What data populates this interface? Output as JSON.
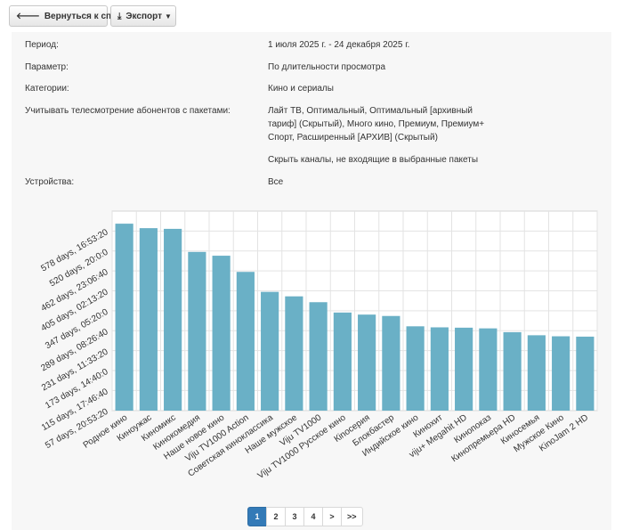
{
  "toolbar": {
    "back_label": "Вернуться к списку",
    "export_label": "Экспорт"
  },
  "report": {
    "period_label": "Период:",
    "period_value": "1 июля 2025 г. - 24 декабря 2025 г.",
    "parameter_label": "Параметр:",
    "parameter_value": "По длительности просмотра",
    "categories_label": "Категории:",
    "categories_value": "Кино и сериалы",
    "packages_label": "Учитывать телесмотрение абонентов с пакетами:",
    "packages_value_line1": "Лайт ТВ, Оптимальный, Оптимальный [архивный",
    "packages_value_line2": "тариф] (Скрытый), Много кино, Премиум, Премиум+",
    "packages_value_line3": "Спорт, Расширенный [АРХИВ] (Скрытый)",
    "hide_channels": "Скрыть каналы, не входящие в выбранные пакеты",
    "devices_label": "Устройства:",
    "devices_value": "Все"
  },
  "chart_data": {
    "type": "bar",
    "color": "#6ab0c6",
    "ylim_days": [
      57.1,
      636.5
    ],
    "y_ticks": [
      {
        "label": "57 days, 20:53:20",
        "days": 57.87
      },
      {
        "label": "115 days, 17:46:40",
        "days": 115.74
      },
      {
        "label": "173 days, 14:40:0",
        "days": 173.61
      },
      {
        "label": "231 days, 11:33:20",
        "days": 231.48
      },
      {
        "label": "289 days, 08:26:40",
        "days": 289.35
      },
      {
        "label": "347 days, 05:20:0",
        "days": 347.22
      },
      {
        "label": "405 days, 02:13:20",
        "days": 405.09
      },
      {
        "label": "462 days, 23:06:40",
        "days": 462.96
      },
      {
        "label": "520 days, 20:0:0",
        "days": 520.83
      },
      {
        "label": "578 days, 16:53:20",
        "days": 578.7
      }
    ],
    "categories": [
      "Родное кино",
      "Киноужас",
      "Киномикс",
      "Кинокомедия",
      "Наше новое кино",
      "Viju TV1000 Action",
      "Советская кинокласcика",
      "Наше мужское",
      "Viju TV1000",
      "Viju TV1000 Русское кино",
      "Кinoсерия",
      "Блокбастер",
      "Индийское кино",
      "Кинохит",
      "viju+ Megahit HD",
      "Кинопоказ",
      "Кинопремьера HD",
      "Киносемья",
      "Мужское Кино",
      "KinoJam 2 HD"
    ],
    "values": [
      600,
      587,
      585,
      518,
      507,
      460,
      402,
      389,
      372,
      342,
      336,
      332,
      302,
      299,
      298,
      296,
      285,
      276,
      273,
      272
    ]
  },
  "pagination": {
    "pages": [
      "1",
      "2",
      "3",
      "4",
      ">",
      ">>"
    ],
    "active": "1"
  }
}
